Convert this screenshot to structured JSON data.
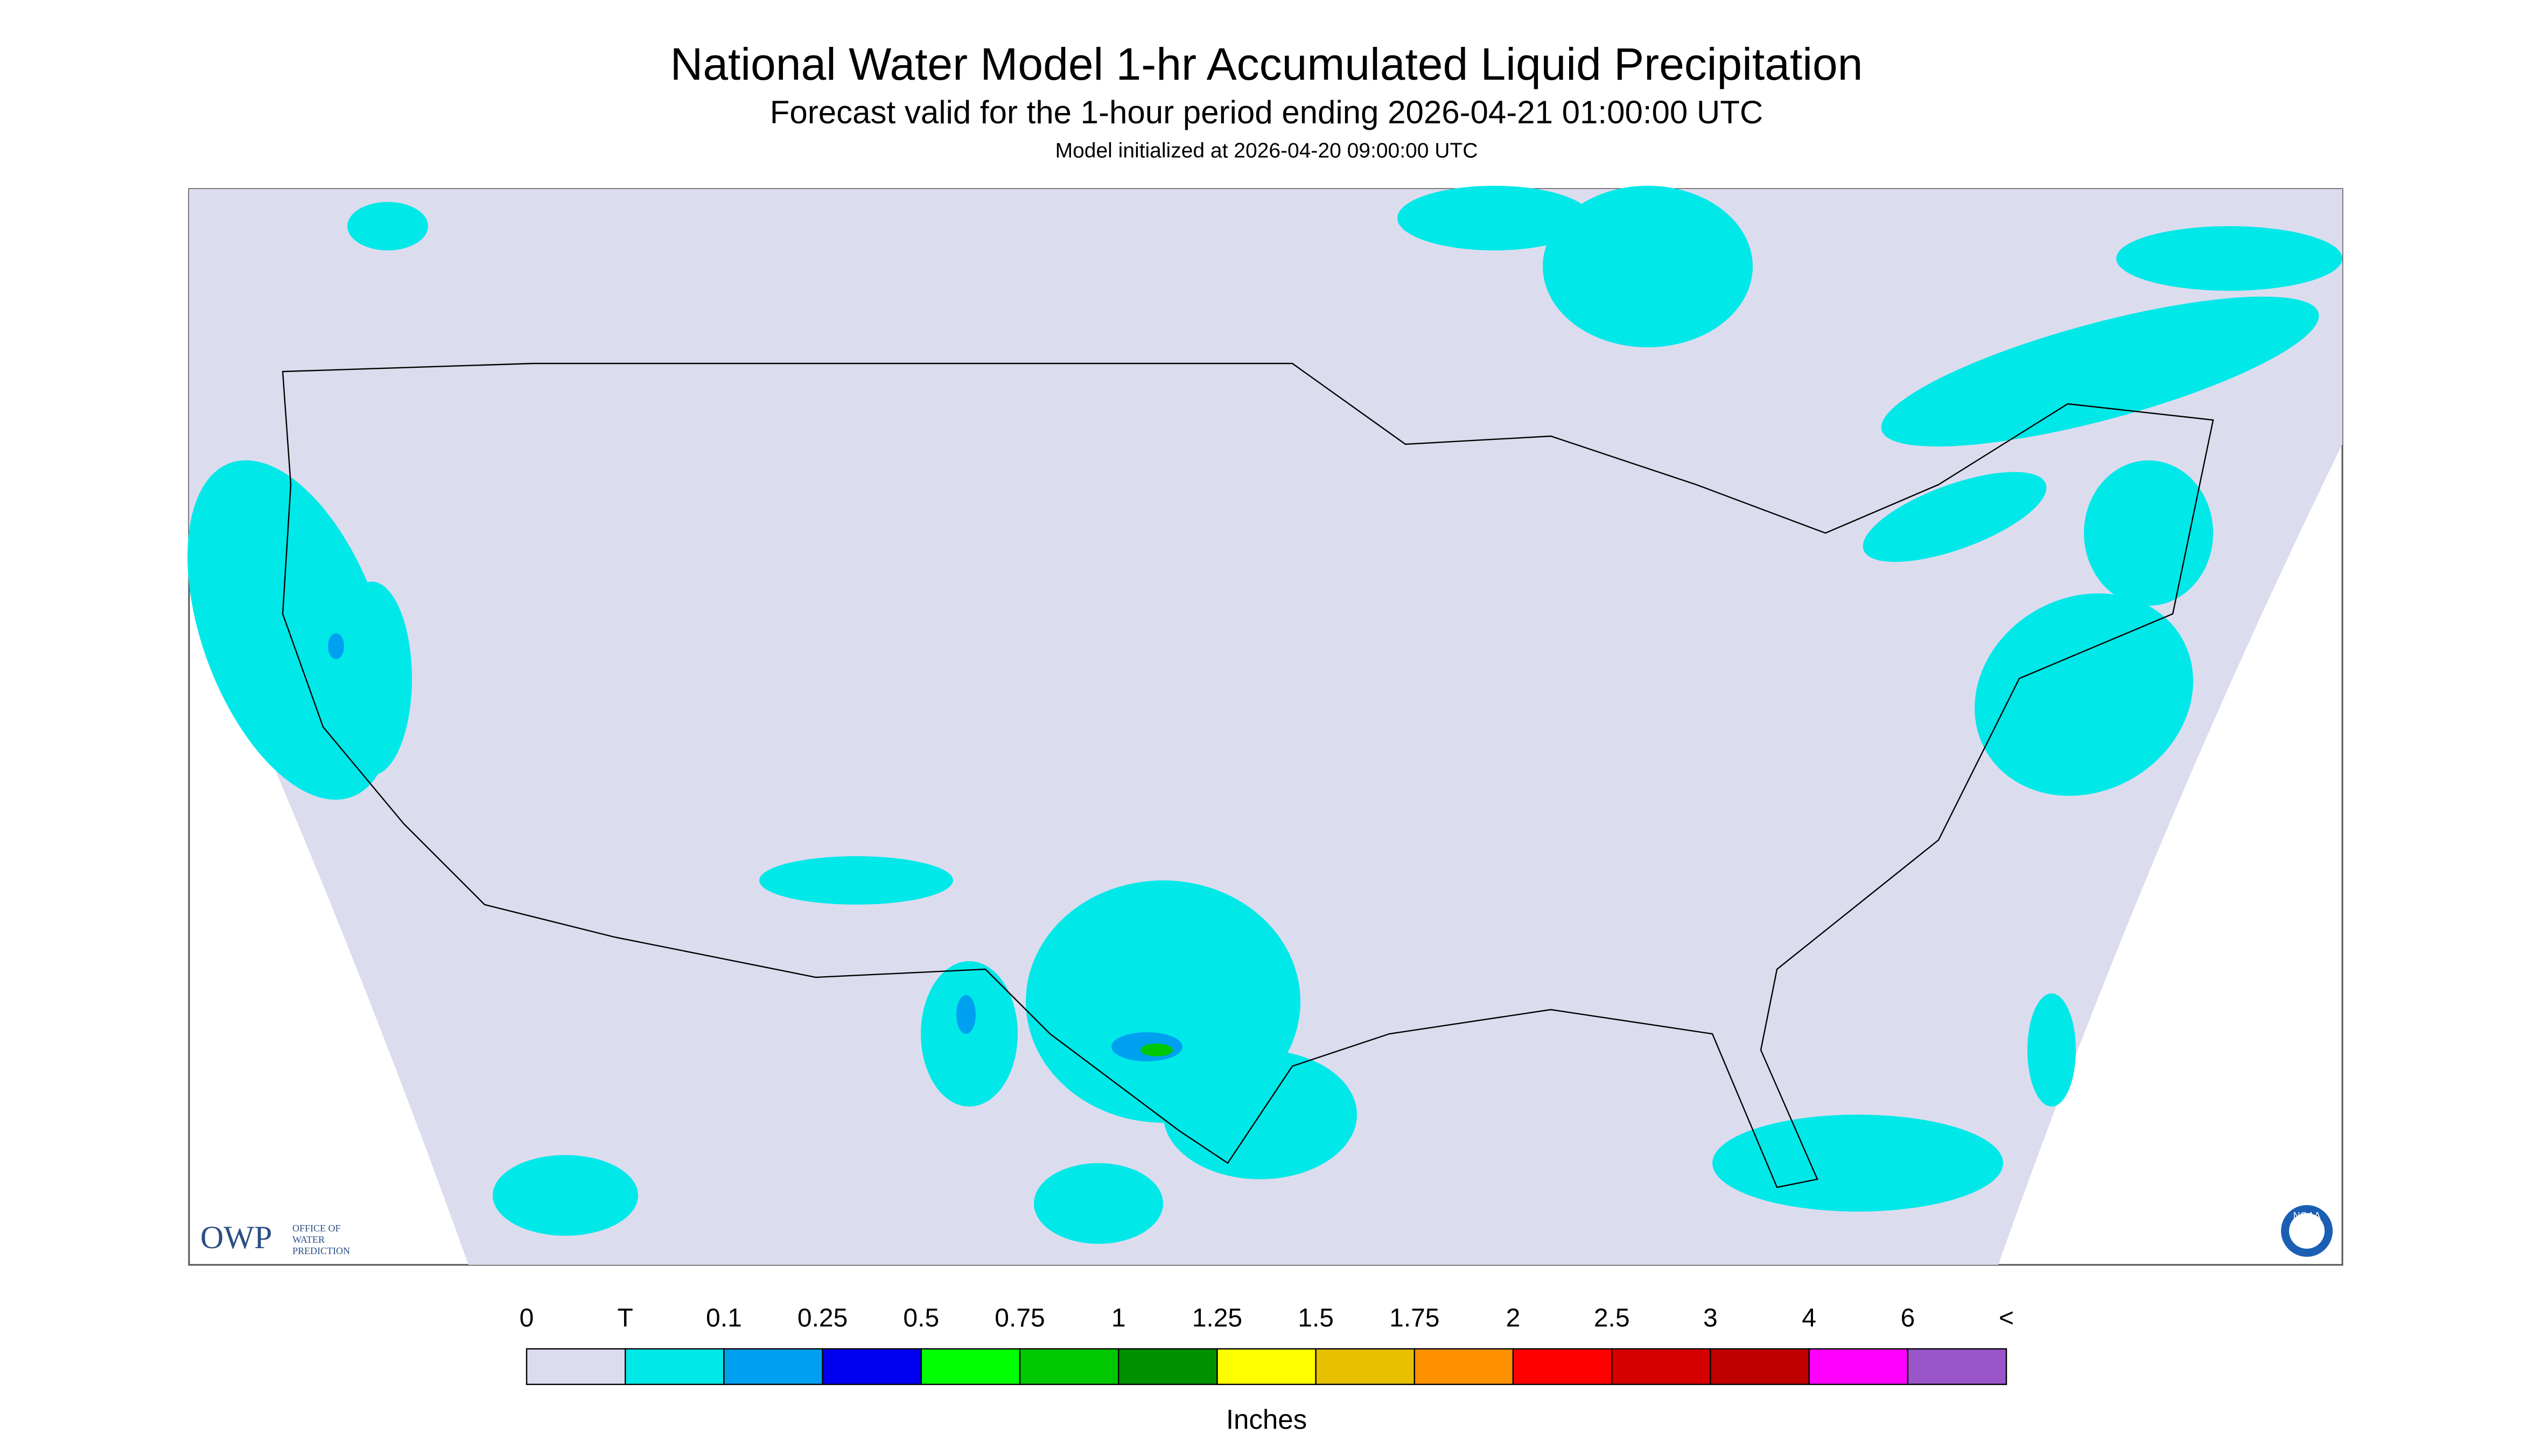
{
  "header": {
    "title": "National Water Model 1-hr Accumulated Liquid Precipitation",
    "subtitle": "Forecast valid for the 1-hour period ending 2026-04-21 01:00:00 UTC",
    "note": "Model initialized at 2026-04-20 09:00:00 UTC"
  },
  "legend": {
    "labels": [
      "0",
      "T",
      "0.1",
      "0.25",
      "0.5",
      "0.75",
      "1",
      "1.25",
      "1.5",
      "1.75",
      "2",
      "2.5",
      "3",
      "4",
      "6",
      "<"
    ],
    "colors": [
      "#dcdcef",
      "#00e8e8",
      "#00a0f0",
      "#0000f0",
      "#00ff00",
      "#00c800",
      "#009000",
      "#ffff00",
      "#e7c000",
      "#ff9000",
      "#ff0000",
      "#d60000",
      "#c00000",
      "#ff00ff",
      "#9955c9"
    ],
    "unit": "Inches"
  },
  "logos": {
    "owp": "OWP",
    "owp_text": [
      "OFFICE OF",
      "WATER",
      "PREDICTION"
    ],
    "noaa": "NOAA"
  }
}
